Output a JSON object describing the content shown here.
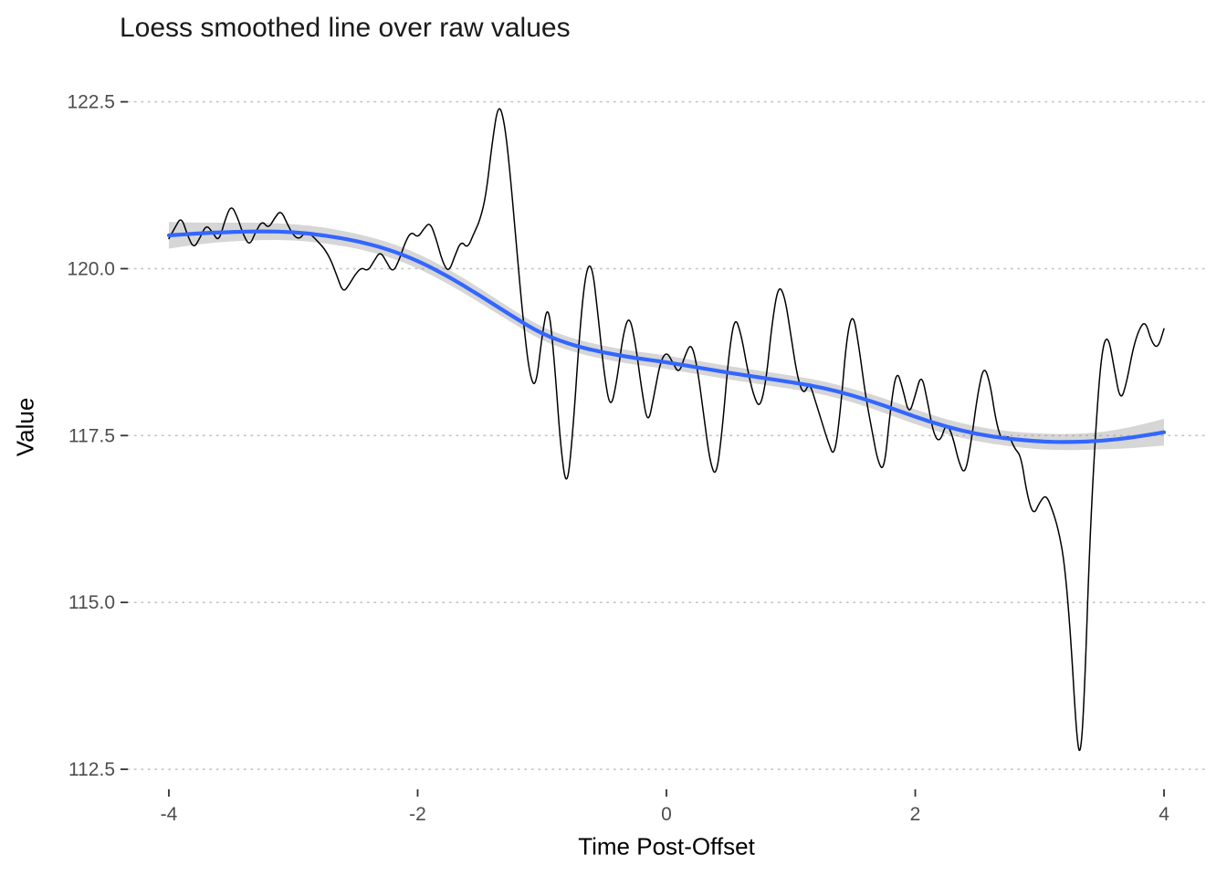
{
  "chart_data": {
    "type": "line",
    "title": "Loess smoothed line over raw values",
    "xlabel": "Time Post-Offset",
    "ylabel": "Value",
    "x_ticks": [
      -4,
      -2,
      0,
      2,
      4
    ],
    "x_tick_labels": [
      "-4",
      "-2",
      "0",
      "2",
      "4"
    ],
    "y_ticks": [
      112.5,
      115.0,
      117.5,
      120.0,
      122.5
    ],
    "y_tick_labels": [
      "112.5",
      "115.0",
      "117.5",
      "120.0",
      "122.5"
    ],
    "xlim": [
      -4.33,
      4.33
    ],
    "ylim": [
      112.2,
      123.0
    ],
    "grid": {
      "horizontal": true,
      "vertical": false,
      "style": "dotted",
      "color": "#c4c4c4"
    },
    "colors": {
      "raw_line": "#000000",
      "smooth_line": "#3366FF",
      "ribbon": "#999999",
      "ribbon_opacity": 0.4,
      "tick_text": "#4d4d4d",
      "tick_mark": "#333333"
    },
    "legend": "none",
    "series": [
      {
        "name": "raw",
        "points": [
          [
            -4.0,
            120.45
          ],
          [
            -3.95,
            120.62
          ],
          [
            -3.9,
            120.78
          ],
          [
            -3.85,
            120.5
          ],
          [
            -3.8,
            120.3
          ],
          [
            -3.75,
            120.46
          ],
          [
            -3.7,
            120.66
          ],
          [
            -3.65,
            120.55
          ],
          [
            -3.6,
            120.4
          ],
          [
            -3.55,
            120.72
          ],
          [
            -3.5,
            120.96
          ],
          [
            -3.45,
            120.78
          ],
          [
            -3.4,
            120.5
          ],
          [
            -3.35,
            120.34
          ],
          [
            -3.3,
            120.56
          ],
          [
            -3.25,
            120.72
          ],
          [
            -3.2,
            120.6
          ],
          [
            -3.15,
            120.76
          ],
          [
            -3.1,
            120.88
          ],
          [
            -3.05,
            120.68
          ],
          [
            -3.0,
            120.5
          ],
          [
            -2.95,
            120.44
          ],
          [
            -2.9,
            120.56
          ],
          [
            -2.85,
            120.5
          ],
          [
            -2.8,
            120.4
          ],
          [
            -2.75,
            120.3
          ],
          [
            -2.7,
            120.14
          ],
          [
            -2.65,
            119.9
          ],
          [
            -2.6,
            119.64
          ],
          [
            -2.55,
            119.76
          ],
          [
            -2.5,
            119.92
          ],
          [
            -2.45,
            120.02
          ],
          [
            -2.4,
            119.96
          ],
          [
            -2.35,
            120.12
          ],
          [
            -2.3,
            120.26
          ],
          [
            -2.25,
            120.1
          ],
          [
            -2.2,
            119.94
          ],
          [
            -2.15,
            120.12
          ],
          [
            -2.1,
            120.4
          ],
          [
            -2.05,
            120.56
          ],
          [
            -2.0,
            120.46
          ],
          [
            -1.95,
            120.6
          ],
          [
            -1.9,
            120.7
          ],
          [
            -1.85,
            120.44
          ],
          [
            -1.8,
            120.1
          ],
          [
            -1.75,
            119.94
          ],
          [
            -1.7,
            120.2
          ],
          [
            -1.65,
            120.42
          ],
          [
            -1.6,
            120.3
          ],
          [
            -1.55,
            120.52
          ],
          [
            -1.5,
            120.72
          ],
          [
            -1.45,
            121.1
          ],
          [
            -1.4,
            121.9
          ],
          [
            -1.35,
            122.5
          ],
          [
            -1.3,
            122.18
          ],
          [
            -1.25,
            121.3
          ],
          [
            -1.2,
            120.2
          ],
          [
            -1.15,
            119.2
          ],
          [
            -1.1,
            118.4
          ],
          [
            -1.05,
            118.2
          ],
          [
            -1.0,
            119.0
          ],
          [
            -0.95,
            119.52
          ],
          [
            -0.9,
            118.6
          ],
          [
            -0.85,
            117.3
          ],
          [
            -0.8,
            116.66
          ],
          [
            -0.75,
            117.6
          ],
          [
            -0.7,
            119.0
          ],
          [
            -0.65,
            119.96
          ],
          [
            -0.6,
            120.1
          ],
          [
            -0.55,
            119.3
          ],
          [
            -0.5,
            118.4
          ],
          [
            -0.45,
            117.88
          ],
          [
            -0.4,
            118.3
          ],
          [
            -0.35,
            119.0
          ],
          [
            -0.3,
            119.32
          ],
          [
            -0.25,
            118.9
          ],
          [
            -0.2,
            118.2
          ],
          [
            -0.15,
            117.64
          ],
          [
            -0.1,
            118.1
          ],
          [
            -0.05,
            118.6
          ],
          [
            0.0,
            118.76
          ],
          [
            0.05,
            118.6
          ],
          [
            0.1,
            118.42
          ],
          [
            0.15,
            118.7
          ],
          [
            0.2,
            118.9
          ],
          [
            0.25,
            118.5
          ],
          [
            0.3,
            117.8
          ],
          [
            0.35,
            117.1
          ],
          [
            0.4,
            116.86
          ],
          [
            0.45,
            117.6
          ],
          [
            0.5,
            118.7
          ],
          [
            0.55,
            119.3
          ],
          [
            0.6,
            119.02
          ],
          [
            0.65,
            118.5
          ],
          [
            0.7,
            118.1
          ],
          [
            0.75,
            117.9
          ],
          [
            0.8,
            118.3
          ],
          [
            0.85,
            119.2
          ],
          [
            0.9,
            119.76
          ],
          [
            0.95,
            119.6
          ],
          [
            1.0,
            119.0
          ],
          [
            1.05,
            118.4
          ],
          [
            1.1,
            118.1
          ],
          [
            1.15,
            118.3
          ],
          [
            1.2,
            118.0
          ],
          [
            1.25,
            117.7
          ],
          [
            1.3,
            117.4
          ],
          [
            1.35,
            117.16
          ],
          [
            1.4,
            117.9
          ],
          [
            1.45,
            119.0
          ],
          [
            1.5,
            119.36
          ],
          [
            1.55,
            118.8
          ],
          [
            1.6,
            118.1
          ],
          [
            1.65,
            117.6
          ],
          [
            1.7,
            117.1
          ],
          [
            1.75,
            116.96
          ],
          [
            1.8,
            117.9
          ],
          [
            1.85,
            118.5
          ],
          [
            1.9,
            118.2
          ],
          [
            1.95,
            117.8
          ],
          [
            2.0,
            118.1
          ],
          [
            2.05,
            118.44
          ],
          [
            2.1,
            118.0
          ],
          [
            2.15,
            117.5
          ],
          [
            2.2,
            117.4
          ],
          [
            2.25,
            117.7
          ],
          [
            2.3,
            117.5
          ],
          [
            2.35,
            117.1
          ],
          [
            2.4,
            116.9
          ],
          [
            2.45,
            117.4
          ],
          [
            2.5,
            118.1
          ],
          [
            2.55,
            118.56
          ],
          [
            2.6,
            118.3
          ],
          [
            2.65,
            117.7
          ],
          [
            2.7,
            117.4
          ],
          [
            2.75,
            117.52
          ],
          [
            2.8,
            117.3
          ],
          [
            2.85,
            117.2
          ],
          [
            2.9,
            116.6
          ],
          [
            2.95,
            116.3
          ],
          [
            3.0,
            116.5
          ],
          [
            3.05,
            116.62
          ],
          [
            3.1,
            116.4
          ],
          [
            3.15,
            116.1
          ],
          [
            3.2,
            115.6
          ],
          [
            3.25,
            114.5
          ],
          [
            3.3,
            112.9
          ],
          [
            3.33,
            112.7
          ],
          [
            3.36,
            113.6
          ],
          [
            3.4,
            115.8
          ],
          [
            3.45,
            117.6
          ],
          [
            3.5,
            118.8
          ],
          [
            3.55,
            119.02
          ],
          [
            3.6,
            118.5
          ],
          [
            3.65,
            118.0
          ],
          [
            3.7,
            118.3
          ],
          [
            3.75,
            118.8
          ],
          [
            3.8,
            119.1
          ],
          [
            3.85,
            119.22
          ],
          [
            3.9,
            118.9
          ],
          [
            3.95,
            118.8
          ],
          [
            4.0,
            119.1
          ]
        ]
      },
      {
        "name": "loess_smooth",
        "x": [
          -4.0,
          -3.75,
          -3.5,
          -3.25,
          -3.0,
          -2.75,
          -2.5,
          -2.25,
          -2.0,
          -1.75,
          -1.5,
          -1.25,
          -1.0,
          -0.75,
          -0.5,
          -0.25,
          0.0,
          0.25,
          0.5,
          0.75,
          1.0,
          1.25,
          1.5,
          1.75,
          2.0,
          2.25,
          2.5,
          2.75,
          3.0,
          3.25,
          3.5,
          3.75,
          4.0
        ],
        "y": [
          120.5,
          120.53,
          120.55,
          120.56,
          120.55,
          120.5,
          120.42,
          120.3,
          120.12,
          119.88,
          119.6,
          119.3,
          119.02,
          118.85,
          118.74,
          118.66,
          118.6,
          118.52,
          118.44,
          118.37,
          118.3,
          118.22,
          118.1,
          117.95,
          117.78,
          117.63,
          117.52,
          117.45,
          117.41,
          117.4,
          117.42,
          117.47,
          117.55
        ],
        "ribbon_halfwidth": [
          0.2,
          0.16,
          0.14,
          0.13,
          0.12,
          0.12,
          0.11,
          0.11,
          0.11,
          0.11,
          0.11,
          0.1,
          0.1,
          0.1,
          0.1,
          0.1,
          0.1,
          0.1,
          0.1,
          0.1,
          0.1,
          0.1,
          0.1,
          0.11,
          0.11,
          0.11,
          0.11,
          0.11,
          0.12,
          0.12,
          0.13,
          0.16,
          0.2
        ]
      }
    ]
  }
}
